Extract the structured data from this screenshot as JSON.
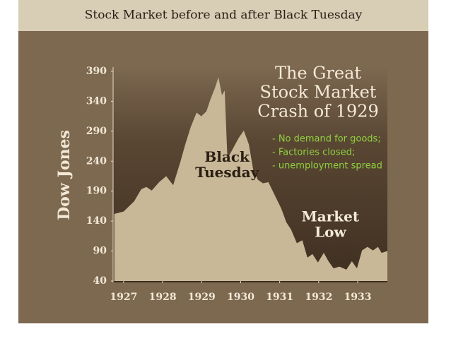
{
  "chart_data": {
    "type": "area",
    "title": "Stock Market before and after Black Tuesday",
    "y_label": "Dow Jones",
    "heading": [
      "The Great",
      "Stock Market",
      "Crash of 1929"
    ],
    "notes": [
      "- No demand for goods;",
      "- Factories closed;",
      "- unemployment spread"
    ],
    "annotations": [
      {
        "text": [
          "Black",
          "Tuesday"
        ],
        "x": 1929.65,
        "y": 220
      },
      {
        "text": [
          "Market",
          "Low"
        ],
        "x": 1932.3,
        "y": 120
      }
    ],
    "x": [
      1926.76,
      1927,
      1927.27,
      1927.45,
      1927.58,
      1927.72,
      1927.91,
      1928.09,
      1928.27,
      1928.45,
      1928.58,
      1928.72,
      1928.87,
      1928.99,
      1929.12,
      1929.23,
      1929.34,
      1929.43,
      1929.52,
      1929.59,
      1929.66,
      1929.81,
      1929.95,
      1930.08,
      1930.21,
      1930.32,
      1930.44,
      1930.57,
      1930.71,
      1930.86,
      1931.04,
      1931.17,
      1931.29,
      1931.44,
      1931.58,
      1931.71,
      1931.84,
      1931.98,
      1932.13,
      1932.25,
      1932.38,
      1932.53,
      1932.71,
      1932.85,
      1932.98,
      1933.11,
      1933.25,
      1933.39,
      1933.52,
      1933.61,
      1933.76
    ],
    "values": [
      152,
      156,
      173,
      193,
      197,
      191,
      205,
      215,
      200,
      238,
      268,
      297,
      321,
      315,
      323,
      344,
      362,
      380,
      350,
      358,
      244,
      262,
      279,
      291,
      268,
      226,
      209,
      203,
      205,
      185,
      161,
      138,
      126,
      103,
      108,
      79,
      85,
      71,
      87,
      73,
      61,
      64,
      59,
      73,
      61,
      91,
      97,
      91,
      97,
      87,
      90
    ],
    "color": "#c8b898",
    "xlim": [
      1926.73,
      1933.76
    ],
    "xticks": [
      1927,
      1928,
      1929,
      1930,
      1931,
      1932,
      1933
    ],
    "ylim": [
      40,
      390
    ],
    "yticks": [
      40,
      90,
      140,
      190,
      240,
      290,
      340,
      390
    ]
  }
}
